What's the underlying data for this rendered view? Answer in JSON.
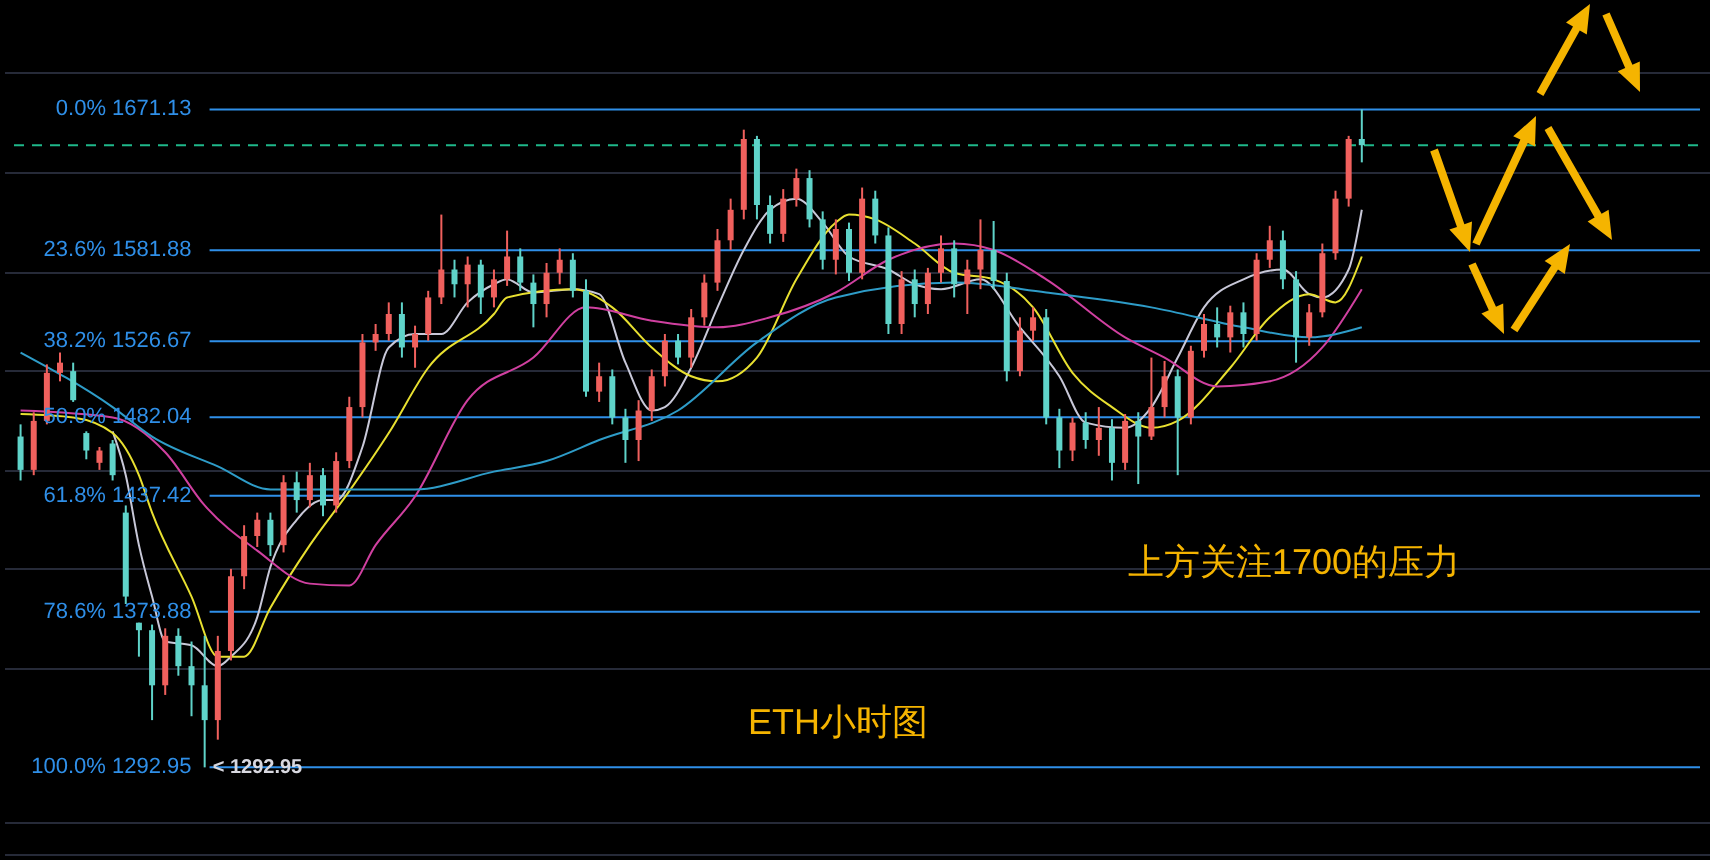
{
  "chart_data": {
    "type": "candlestick",
    "categories": [
      null,
      null,
      null,
      null,
      null,
      null,
      null,
      null,
      null,
      null,
      null,
      null,
      null,
      null,
      null,
      null,
      null,
      null,
      null,
      null,
      null,
      null,
      null,
      null,
      null,
      null,
      null,
      null,
      null,
      null,
      null,
      null,
      null,
      null,
      null,
      null,
      null,
      null,
      null,
      null,
      null,
      null,
      null,
      null,
      null,
      null,
      null,
      null,
      null,
      null,
      null,
      null,
      null,
      null,
      null,
      null,
      null,
      null,
      null,
      null,
      null,
      null,
      null,
      null,
      null,
      null,
      null,
      null,
      null,
      null,
      null,
      null,
      null,
      null,
      null,
      null,
      null,
      null,
      null,
      null,
      null,
      null,
      null,
      null,
      null,
      null,
      null,
      null,
      null,
      null,
      null,
      null,
      null,
      null,
      null,
      null,
      null,
      null,
      null,
      null,
      null,
      null,
      null
    ],
    "ohlc": [
      [
        1471,
        1478,
        1446,
        1452
      ],
      [
        1452,
        1485,
        1449,
        1480
      ],
      [
        1480,
        1513,
        1478,
        1508
      ],
      [
        1508,
        1520,
        1503,
        1514
      ],
      [
        1509,
        1514,
        1491,
        1492
      ],
      [
        1473,
        1474,
        1458,
        1463
      ],
      [
        1456,
        1465,
        1452,
        1463
      ],
      [
        1467,
        1469,
        1446,
        1449
      ],
      [
        1428,
        1432,
        1378,
        1382
      ],
      [
        1368,
        1368,
        1350,
        1364
      ],
      [
        1364,
        1367,
        1317,
        1335
      ],
      [
        1335,
        1365,
        1330,
        1361
      ],
      [
        1361,
        1365,
        1340,
        1345
      ],
      [
        1345,
        1358,
        1319,
        1335
      ],
      [
        1335,
        1361,
        1292.95,
        1317
      ],
      [
        1317,
        1361,
        1307,
        1353
      ],
      [
        1353,
        1397,
        1348,
        1393
      ],
      [
        1393,
        1421,
        1386,
        1415
      ],
      [
        1415,
        1428,
        1409,
        1424
      ],
      [
        1424,
        1428,
        1404,
        1410
      ],
      [
        1410,
        1449,
        1406,
        1445
      ],
      [
        1445,
        1451,
        1428,
        1435
      ],
      [
        1435,
        1456,
        1431,
        1449
      ],
      [
        1449,
        1453,
        1426,
        1432
      ],
      [
        1432,
        1462,
        1428,
        1457
      ],
      [
        1457,
        1494,
        1453,
        1488
      ],
      [
        1488,
        1531,
        1482,
        1526
      ],
      [
        1526,
        1537,
        1521,
        1531
      ],
      [
        1531,
        1550,
        1527,
        1543
      ],
      [
        1543,
        1550,
        1517,
        1523
      ],
      [
        1523,
        1536,
        1511,
        1531
      ],
      [
        1531,
        1557,
        1527,
        1553
      ],
      [
        1553,
        1604,
        1549,
        1570
      ],
      [
        1570,
        1576,
        1553,
        1561
      ],
      [
        1561,
        1578,
        1547,
        1573
      ],
      [
        1573,
        1576,
        1543,
        1553
      ],
      [
        1553,
        1570,
        1547,
        1564
      ],
      [
        1564,
        1594,
        1560,
        1578
      ],
      [
        1578,
        1583,
        1557,
        1562
      ],
      [
        1562,
        1567,
        1535,
        1549
      ],
      [
        1549,
        1574,
        1541,
        1568
      ],
      [
        1568,
        1583,
        1561,
        1576
      ],
      [
        1576,
        1580,
        1553,
        1557
      ],
      [
        1557,
        1564,
        1494,
        1497
      ],
      [
        1497,
        1514,
        1491,
        1506
      ],
      [
        1506,
        1510,
        1478,
        1482
      ],
      [
        1482,
        1487,
        1456,
        1469
      ],
      [
        1469,
        1492,
        1457,
        1486
      ],
      [
        1486,
        1510,
        1480,
        1506
      ],
      [
        1506,
        1531,
        1500,
        1527
      ],
      [
        1527,
        1531,
        1513,
        1517
      ],
      [
        1517,
        1546,
        1511,
        1541
      ],
      [
        1541,
        1567,
        1536,
        1562
      ],
      [
        1562,
        1595,
        1557,
        1588
      ],
      [
        1588,
        1614,
        1582,
        1607
      ],
      [
        1607,
        1658,
        1601,
        1652
      ],
      [
        1652,
        1654,
        1601,
        1610
      ],
      [
        1610,
        1616,
        1586,
        1592
      ],
      [
        1592,
        1620,
        1587,
        1614
      ],
      [
        1614,
        1633,
        1609,
        1627
      ],
      [
        1627,
        1632,
        1596,
        1601
      ],
      [
        1601,
        1606,
        1570,
        1576
      ],
      [
        1576,
        1601,
        1567,
        1595
      ],
      [
        1595,
        1599,
        1563,
        1568
      ],
      [
        1568,
        1621,
        1564,
        1614
      ],
      [
        1614,
        1619,
        1586,
        1591
      ],
      [
        1591,
        1596,
        1531,
        1537
      ],
      [
        1537,
        1569,
        1531,
        1564
      ],
      [
        1564,
        1570,
        1541,
        1549
      ],
      [
        1549,
        1571,
        1543,
        1568
      ],
      [
        1568,
        1591,
        1562,
        1583
      ],
      [
        1583,
        1588,
        1553,
        1561
      ],
      [
        1561,
        1576,
        1543,
        1570
      ],
      [
        1570,
        1601,
        1558,
        1582
      ],
      [
        1582,
        1600,
        1558,
        1563
      ],
      [
        1563,
        1568,
        1503,
        1509
      ],
      [
        1509,
        1541,
        1506,
        1533
      ],
      [
        1533,
        1547,
        1527,
        1541
      ],
      [
        1541,
        1546,
        1478,
        1482
      ],
      [
        1482,
        1487,
        1453,
        1463
      ],
      [
        1463,
        1482,
        1457,
        1479
      ],
      [
        1479,
        1485,
        1464,
        1469
      ],
      [
        1469,
        1488,
        1460,
        1476
      ],
      [
        1476,
        1481,
        1446,
        1456
      ],
      [
        1456,
        1484,
        1452,
        1480
      ],
      [
        1480,
        1485,
        1444,
        1471
      ],
      [
        1471,
        1517,
        1469,
        1488
      ],
      [
        1488,
        1515,
        1482,
        1506
      ],
      [
        1506,
        1510,
        1449,
        1482
      ],
      [
        1482,
        1524,
        1478,
        1521
      ],
      [
        1521,
        1543,
        1517,
        1537
      ],
      [
        1537,
        1547,
        1523,
        1529
      ],
      [
        1529,
        1548,
        1520,
        1544
      ],
      [
        1544,
        1550,
        1523,
        1531
      ],
      [
        1531,
        1580,
        1527,
        1576
      ],
      [
        1576,
        1597,
        1571,
        1588
      ],
      [
        1588,
        1594,
        1558,
        1564
      ],
      [
        1564,
        1569,
        1514,
        1529
      ],
      [
        1529,
        1549,
        1524,
        1544
      ],
      [
        1544,
        1586,
        1541,
        1580
      ],
      [
        1580,
        1619,
        1576,
        1614
      ],
      [
        1614,
        1654,
        1609,
        1652
      ],
      [
        1652,
        1671.13,
        1637,
        1648
      ]
    ],
    "colors": [
      "#5fd3c9",
      "#f0605d",
      "#f0605d",
      "#f0605d",
      "#5fd3c9",
      "#5fd3c9",
      "#f0605d",
      "#5fd3c9",
      "#5fd3c9",
      "#5fd3c9",
      "#5fd3c9",
      "#f0605d",
      "#5fd3c9",
      "#5fd3c9",
      "#5fd3c9",
      "#f0605d",
      "#f0605d",
      "#f0605d",
      "#f0605d",
      "#5fd3c9",
      "#f0605d",
      "#5fd3c9",
      "#f0605d",
      "#5fd3c9",
      "#f0605d",
      "#f0605d",
      "#f0605d",
      "#f0605d",
      "#f0605d",
      "#5fd3c9",
      "#f0605d",
      "#f0605d",
      "#f0605d",
      "#5fd3c9",
      "#f0605d",
      "#5fd3c9",
      "#f0605d",
      "#f0605d",
      "#5fd3c9",
      "#5fd3c9",
      "#f0605d",
      "#f0605d",
      "#5fd3c9",
      "#5fd3c9",
      "#f0605d",
      "#5fd3c9",
      "#5fd3c9",
      "#f0605d",
      "#f0605d",
      "#f0605d",
      "#5fd3c9",
      "#f0605d",
      "#f0605d",
      "#f0605d",
      "#f0605d",
      "#f0605d",
      "#5fd3c9",
      "#5fd3c9",
      "#f0605d",
      "#f0605d",
      "#5fd3c9",
      "#5fd3c9",
      "#f0605d",
      "#5fd3c9",
      "#f0605d",
      "#5fd3c9",
      "#5fd3c9",
      "#f0605d",
      "#5fd3c9",
      "#f0605d",
      "#f0605d",
      "#5fd3c9",
      "#f0605d",
      "#f0605d",
      "#5fd3c9",
      "#5fd3c9",
      "#f0605d",
      "#f0605d",
      "#5fd3c9",
      "#5fd3c9",
      "#f0605d",
      "#5fd3c9",
      "#f0605d",
      "#5fd3c9",
      "#f0605d",
      "#5fd3c9",
      "#f0605d",
      "#f0605d",
      "#5fd3c9",
      "#f0605d",
      "#f0605d",
      "#5fd3c9",
      "#f0605d",
      "#5fd3c9",
      "#f0605d",
      "#f0605d",
      "#5fd3c9",
      "#5fd3c9",
      "#f0605d",
      "#f0605d",
      "#f0605d",
      "#f0605d",
      "#5fd3c9"
    ],
    "series": [
      {
        "type": "line",
        "color": "#c8c8d8",
        "values": [
          null,
          null,
          null,
          null,
          null,
          null,
          null,
          1474,
          1449,
          1410,
          1382,
          1358,
          null,
          1356,
          null,
          1345,
          1350,
          null,
          1371,
          1398,
          null,
          1424,
          null,
          1435,
          1435,
          null,
          1465,
          null,
          1523,
          null,
          1531,
          null,
          1531,
          null,
          1550,
          null,
          1561,
          1564,
          null,
          1556,
          null,
          null,
          1558,
          null,
          1555,
          null,
          1514,
          null,
          1486,
          1488,
          null,
          1511,
          null,
          1547,
          null,
          1582,
          null,
          1607,
          null,
          1614,
          null,
          1599,
          null,
          1578,
          null,
          null,
          1570,
          null,
          1561,
          null,
          1558,
          null,
          null,
          1564,
          null,
          null,
          1535,
          null,
          null,
          1506,
          null,
          1479,
          null,
          null,
          1476,
          null,
          1488,
          null,
          1517,
          null,
          1547,
          null,
          null,
          1564,
          null,
          null,
          1570,
          null,
          1555,
          1553,
          null,
          1570,
          1607
        ]
      },
      {
        "type": "line",
        "color": "#e8e030",
        "values": [
          1484,
          null,
          null,
          null,
          1482,
          null,
          null,
          1473,
          null,
          1449,
          1428,
          null,
          null,
          1382,
          null,
          1350,
          null,
          1350,
          null,
          1376,
          null,
          null,
          1410,
          null,
          null,
          1440,
          null,
          null,
          1473,
          null,
          null,
          1511,
          null,
          null,
          null,
          null,
          1543,
          1553,
          null,
          null,
          null,
          null,
          1558,
          null,
          null,
          1547,
          null,
          null,
          1523,
          null,
          null,
          1506,
          null,
          1503,
          null,
          null,
          1517,
          null,
          null,
          1564,
          null,
          null,
          1599,
          1604,
          null,
          1601,
          null,
          null,
          1586,
          null,
          null,
          1568,
          null,
          null,
          1564,
          null,
          null,
          1547,
          null,
          null,
          1508,
          null,
          null,
          1488,
          null,
          null,
          1476,
          null,
          1480,
          null,
          null,
          null,
          1511,
          null,
          null,
          1541,
          null,
          null,
          1555,
          null,
          1550,
          null,
          1578
        ]
      },
      {
        "type": "line",
        "color": "#d040a0",
        "values": [
          1486,
          null,
          null,
          null,
          null,
          null,
          null,
          1482,
          null,
          null,
          null,
          1462,
          null,
          null,
          1432,
          null,
          null,
          null,
          1407,
          null,
          null,
          null,
          1389,
          null,
          null,
          1388,
          null,
          1410,
          null,
          null,
          1437,
          null,
          null,
          null,
          1492,
          null,
          null,
          null,
          null,
          1517,
          null,
          null,
          null,
          1547,
          null,
          null,
          null,
          null,
          1539,
          null,
          null,
          null,
          null,
          1535,
          null,
          null,
          null,
          1541,
          null,
          null,
          null,
          null,
          1556,
          null,
          null,
          null,
          1576,
          null,
          null,
          null,
          null,
          1586,
          null,
          null,
          1582,
          null,
          null,
          null,
          1564,
          null,
          null,
          null,
          null,
          null,
          1529,
          null,
          null,
          1517,
          null,
          null,
          null,
          1500,
          null,
          null,
          null,
          1503,
          null,
          null,
          null,
          1523,
          null,
          null,
          1558
        ]
      },
      {
        "type": "line",
        "color": "#2e9cc8",
        "values": [
          1520,
          null,
          null,
          null,
          null,
          null,
          null,
          1488,
          null,
          null,
          1471,
          null,
          null,
          null,
          null,
          1454,
          null,
          null,
          null,
          1441,
          null,
          null,
          null,
          null,
          null,
          null,
          null,
          null,
          null,
          null,
          1441,
          null,
          null,
          null,
          null,
          null,
          1451,
          null,
          null,
          null,
          1457,
          null,
          null,
          null,
          1469,
          null,
          null,
          null,
          null,
          null,
          1486,
          null,
          null,
          null,
          null,
          null,
          1526,
          null,
          null,
          null,
          null,
          null,
          1553,
          null,
          null,
          null,
          null,
          null,
          null,
          null,
          null,
          1562,
          null,
          null,
          null,
          null,
          null,
          null,
          1556,
          null,
          null,
          null,
          null,
          null,
          null,
          null,
          1547,
          null,
          null,
          null,
          null,
          null,
          null,
          1535,
          null,
          null,
          null,
          null,
          1529,
          null,
          null,
          null,
          1535
        ]
      }
    ],
    "ylim": [
      1250,
      1744
    ],
    "log": "y",
    "yticks": [
      {
        "value": 1266,
        "label": null
      },
      {
        "value": 1344,
        "label": null
      },
      {
        "value": 1397,
        "label": null
      },
      {
        "value": 1452,
        "label": null
      },
      {
        "value": 1510,
        "label": null
      },
      {
        "value": 1569,
        "label": null
      },
      {
        "value": 1631,
        "label": null
      },
      {
        "value": 1696,
        "label": null
      }
    ],
    "grid": "y",
    "ref_lines": [
      {
        "axis": "y",
        "value": 1671.13,
        "label": "0.0% 1671.13",
        "color": "#2f8fe8"
      },
      {
        "axis": "y",
        "value": 1581.88,
        "label": "23.6% 1581.88",
        "color": "#2f8fe8"
      },
      {
        "axis": "y",
        "value": 1526.67,
        "label": "38.2% 1526.67",
        "color": "#2f8fe8"
      },
      {
        "axis": "y",
        "value": 1482.04,
        "label": "50.0% 1482.04",
        "color": "#2f8fe8"
      },
      {
        "axis": "y",
        "value": 1437.42,
        "label": "61.8% 1437.42",
        "color": "#2f8fe8"
      },
      {
        "axis": "y",
        "value": 1373.88,
        "label": "78.6% 1373.88",
        "color": "#2f8fe8"
      },
      {
        "axis": "y",
        "value": 1292.95,
        "label": "100.0% 1292.95",
        "color": "#2f8fe8"
      },
      {
        "axis": "y",
        "value": 1648,
        "color": "#1fb88a",
        "line_style": "dashed"
      }
    ],
    "annotations": [
      "上方关注1700的压力",
      "ETH小时图",
      {
        "text": "< 1292.95",
        "y": 1292.95
      }
    ]
  }
}
